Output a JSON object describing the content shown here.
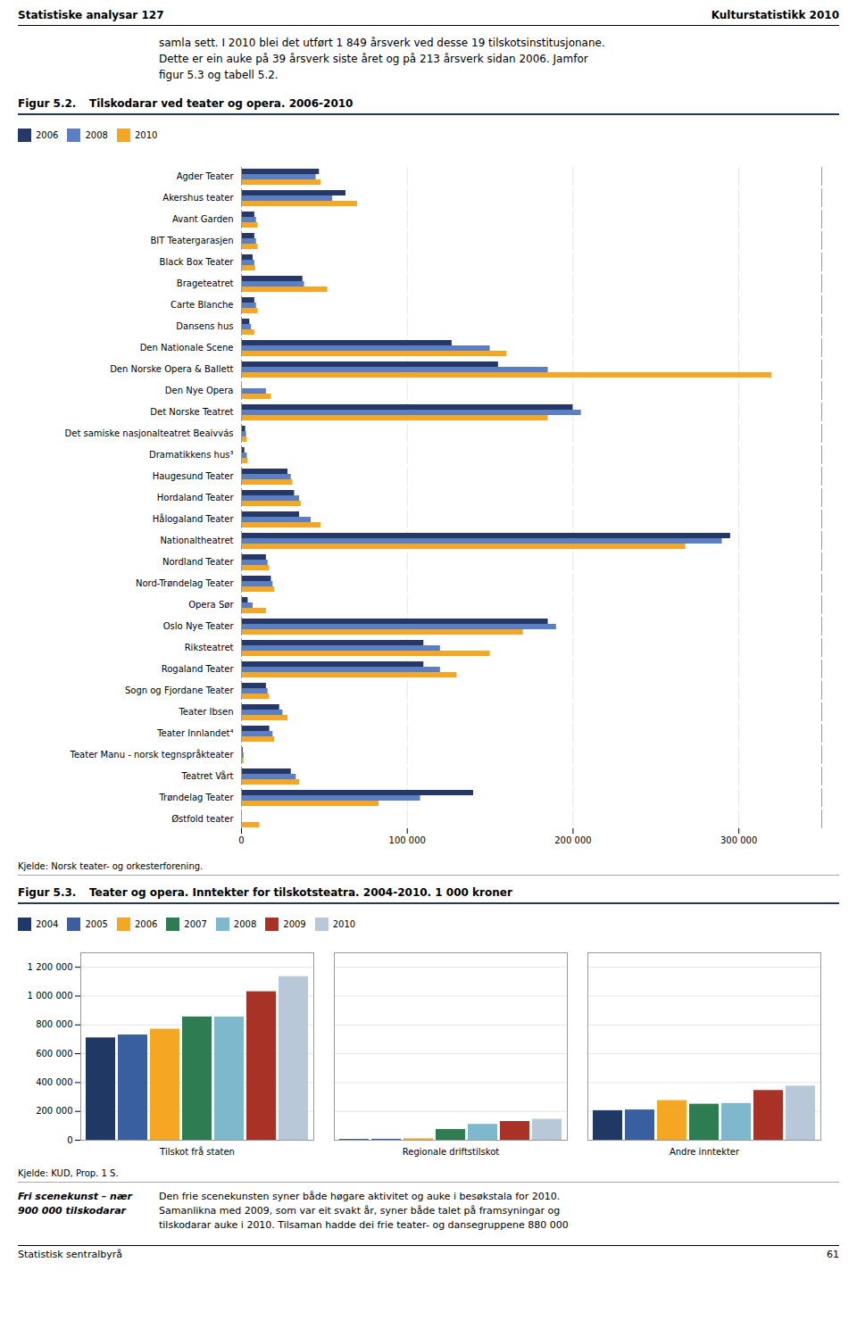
{
  "annotations": [
    "Statistiske analysar 127",
    "Kulturstatistikk 2010",
    "samla sett. I 2010 blei det utført 1 849 årsverk ved desse 19 tilskotsinstitusjonane.\nDette er ein auke på 39 årsverk siste året og på 213 årsverk sidan 2006. Jamfor\nfigur 5.3 og tabell 5.2.",
    "Fri scenekunst – nær\n900 000 tilskodarar",
    "Den frie scenekunsten syner både høgare aktivitet og auke i besøkstala for 2010.\nSamanlikna med 2009, som var eit svakt år, syner både talet på framsyningar og\ntilskodarar auke i 2010. Tilsaman hadde dei frie teater- og dansegruppene 880 000",
    "Statistisk sentralbyrå",
    "61"
  ],
  "chart_data": [
    {
      "type": "bar",
      "orientation": "horizontal",
      "title": "Tilskodarar ved teater og opera. 2006-2010",
      "annotations": [
        "Figur 5.2.",
        "Kjelde: Norsk teater- og orkesterforening."
      ],
      "categories": [
        "Agder Teater",
        "Akershus teater",
        "Avant Garden",
        "BIT Teatergarasjen",
        "Black Box Teater",
        "Brageteatret",
        "Carte Blanche",
        "Dansens hus",
        "Den Nationale Scene",
        "Den Norske Opera & Ballett",
        "Den Nye Opera",
        "Det Norske Teatret",
        "Det samiske nasjonalteatret Beaivvás",
        "Dramatikkens hus³",
        "Haugesund Teater",
        "Hordaland Teater",
        "Hålogaland Teater",
        "Nationaltheatret",
        "Nordland Teater",
        "Nord-Trøndelag Teater",
        "Opera Sør",
        "Oslo Nye Teater",
        "Riksteatret",
        "Rogaland Teater",
        "Sogn og Fjordane Teater",
        "Teater Ibsen",
        "Teater Innlandet⁴",
        "Teater Manu - norsk tegnspråkteater",
        "Teatret Vårt",
        "Trøndelag Teater",
        "Østfold teater"
      ],
      "series": [
        {
          "name": "2006",
          "color": "#253868",
          "values": [
            47000,
            63000,
            8000,
            8000,
            7000,
            37000,
            8000,
            5000,
            127000,
            155000,
            0,
            200000,
            2500,
            2000,
            28000,
            32000,
            35000,
            295000,
            15000,
            18000,
            4000,
            185000,
            110000,
            110000,
            15000,
            23000,
            17000,
            1000,
            30000,
            140000,
            0
          ]
        },
        {
          "name": "2008",
          "color": "#5b7fc4",
          "values": [
            45000,
            55000,
            9000,
            9000,
            8000,
            38000,
            9000,
            6000,
            150000,
            185000,
            15000,
            205000,
            3000,
            3500,
            30000,
            35000,
            42000,
            290000,
            16000,
            19000,
            7000,
            190000,
            120000,
            120000,
            16000,
            25000,
            19000,
            1500,
            33000,
            108000,
            0
          ]
        },
        {
          "name": "2010",
          "color": "#f5a623",
          "values": [
            48000,
            70000,
            10000,
            10000,
            8500,
            52000,
            10000,
            8000,
            160000,
            320000,
            18000,
            185000,
            3500,
            4000,
            31000,
            36000,
            48000,
            268000,
            17000,
            20000,
            15000,
            170000,
            150000,
            130000,
            17000,
            28000,
            20000,
            1500,
            35000,
            83000,
            11000
          ]
        }
      ],
      "xlim": [
        0,
        350000
      ],
      "xticks": [
        0,
        {
          "value": 100000,
          "label": "100 000"
        },
        {
          "value": 200000,
          "label": "200 000"
        },
        {
          "value": 300000,
          "label": "300 000"
        }
      ],
      "grid": true,
      "legend": "top"
    },
    {
      "type": "bar",
      "title": "Teater og opera. Inntekter for tilskotsteatra. 2004-2010. 1 000 kroner",
      "annotations": [
        "Figur 5.3.",
        "Kjelde: KUD, Prop. 1 S."
      ],
      "categories": [
        "Tilskot frå staten",
        "Regionale driftstilskot",
        "Andre inntekter"
      ],
      "series": [
        {
          "name": "2004",
          "color": "#1f3864",
          "values": [
            710000,
            5000,
            205000
          ]
        },
        {
          "name": "2005",
          "color": "#3a5fa0",
          "values": [
            730000,
            7000,
            210000
          ]
        },
        {
          "name": "2006",
          "color": "#f5a623",
          "values": [
            770000,
            10000,
            275000
          ]
        },
        {
          "name": "2007",
          "color": "#2e7d52",
          "values": [
            855000,
            75000,
            250000
          ]
        },
        {
          "name": "2008",
          "color": "#7db8cc",
          "values": [
            855000,
            110000,
            255000
          ]
        },
        {
          "name": "2009",
          "color": "#a93226",
          "values": [
            1030000,
            130000,
            345000
          ]
        },
        {
          "name": "2010",
          "color": "#b8c8d8",
          "values": [
            1135000,
            145000,
            375000
          ]
        }
      ],
      "ylim": [
        0,
        1300000
      ],
      "yticks": [
        0,
        {
          "value": 200000,
          "label": "200 000"
        },
        {
          "value": 400000,
          "label": "400 000"
        },
        {
          "value": 600000,
          "label": "600 000"
        },
        {
          "value": 800000,
          "label": "800 000"
        },
        {
          "value": 1000000,
          "label": "1 000 000"
        },
        {
          "value": 1200000,
          "label": "1 200 000"
        }
      ],
      "grid": true,
      "legend": "top"
    }
  ]
}
